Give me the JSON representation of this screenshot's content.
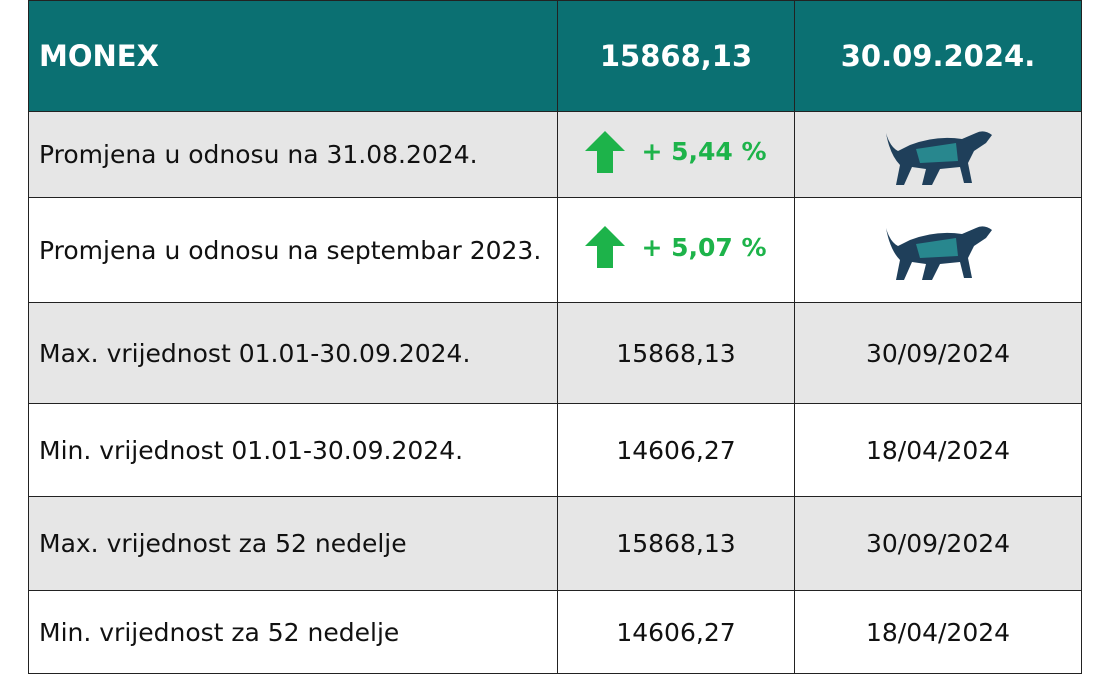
{
  "table": {
    "header": [
      "MONEX",
      "15868,13",
      "30.09.2024."
    ],
    "rows": [
      [
        "Promjena u odnosu na 31.08.2024.",
        "+ 5,44 %",
        ""
      ],
      [
        "Promjena u odnosu na septembar 2023.",
        "+ 5,07 %",
        ""
      ],
      [
        "Max. vrijednost 01.01-30.09.2024.",
        "15868,13",
        "30/09/2024"
      ],
      [
        "Min. vrijednost 01.01-30.09.2024.",
        "14606,27",
        "18/04/2024"
      ],
      [
        "Max. vrijednost za 52 nedelje",
        "15868,13",
        "30/09/2024"
      ],
      [
        "Min. vrijednost za 52 nedelje",
        "14606,27",
        "18/04/2024"
      ]
    ]
  }
}
